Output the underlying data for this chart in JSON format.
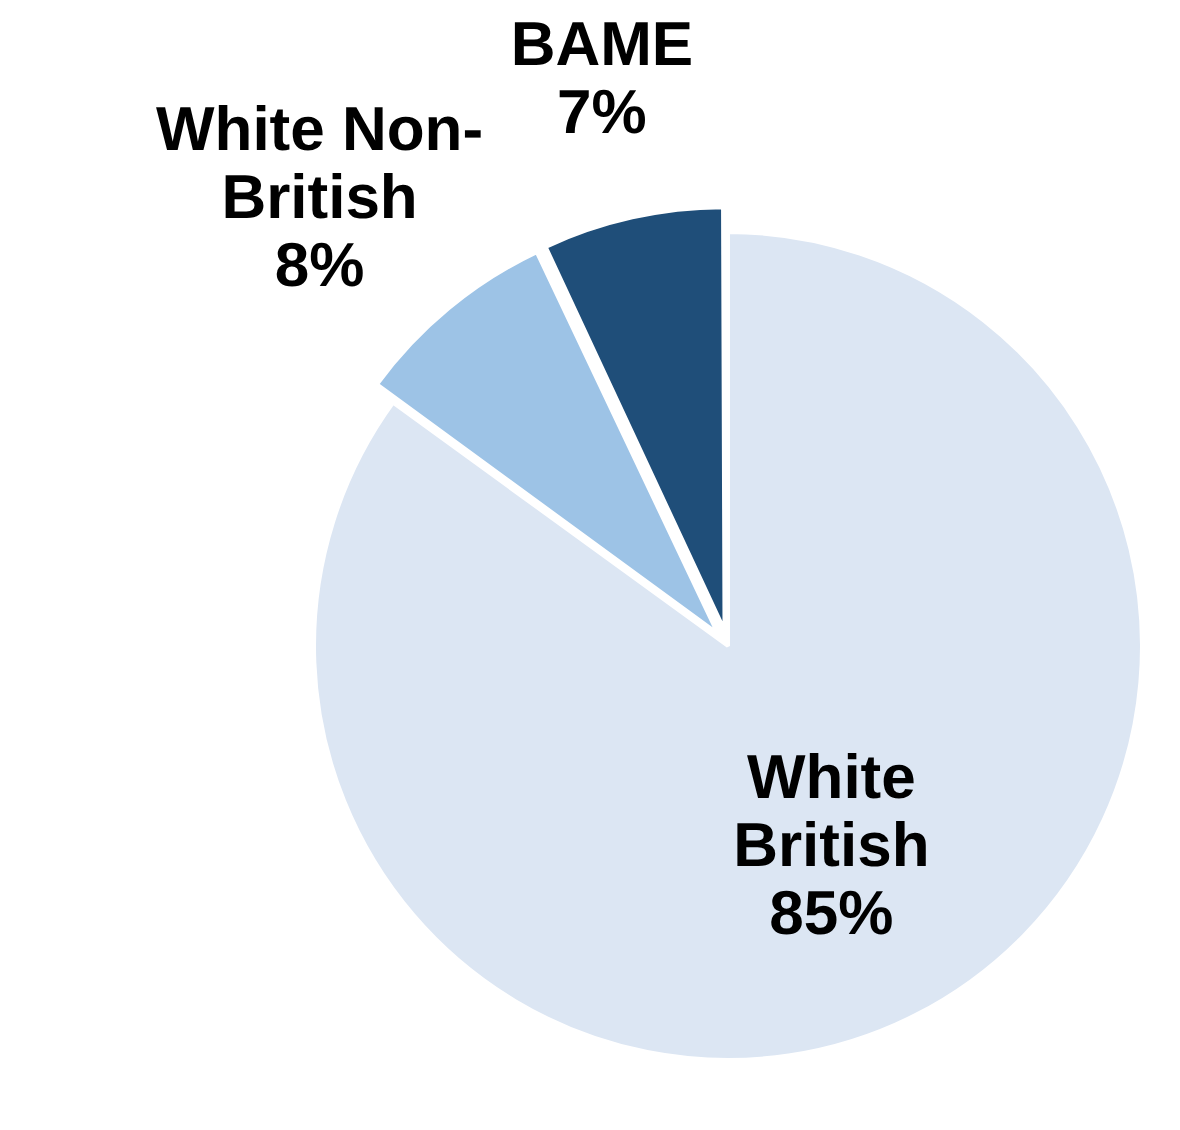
{
  "chart_data": {
    "type": "pie",
    "categories": [
      "White British",
      "White Non-British",
      "BAME"
    ],
    "values": [
      85,
      8,
      7
    ],
    "value_labels": [
      "85%",
      "8%",
      "7%"
    ],
    "colors": [
      "#dce6f3",
      "#9dc3e6",
      "#1f4e79"
    ]
  }
}
